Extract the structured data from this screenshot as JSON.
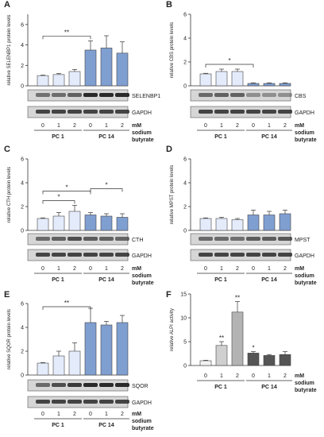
{
  "chart_data": [
    {
      "panel": "A",
      "type": "bar",
      "title": "",
      "ylabel": "relative SELENBP1 protein levels",
      "ylim": [
        0,
        7
      ],
      "yticks": [
        0,
        2,
        4,
        6
      ],
      "categories": [
        "0",
        "1",
        "2",
        "0",
        "1",
        "2"
      ],
      "groups": [
        "PC 1",
        "PC 14"
      ],
      "values": [
        1.0,
        1.1,
        1.4,
        3.5,
        3.7,
        3.2
      ],
      "errors": [
        0.05,
        0.1,
        0.2,
        0.9,
        1.2,
        1.1
      ],
      "significance": [
        {
          "label": "**",
          "from": 0,
          "to": 3
        }
      ],
      "blots": [
        "SELENBP1",
        "GAPDH"
      ],
      "unit_label": [
        "mM",
        "sodium",
        "butyrate"
      ]
    },
    {
      "panel": "B",
      "type": "bar",
      "title": "",
      "ylabel": "relative CBS protein levels",
      "ylim": [
        0,
        6
      ],
      "yticks": [
        0,
        2,
        4,
        6
      ],
      "categories": [
        "0",
        "1",
        "2",
        "0",
        "1",
        "2"
      ],
      "groups": [
        "PC 1",
        "PC 14"
      ],
      "values": [
        1.0,
        1.2,
        1.2,
        0.2,
        0.2,
        0.2
      ],
      "errors": [
        0.05,
        0.2,
        0.2,
        0.05,
        0.05,
        0.05
      ],
      "significance": [
        {
          "label": "*",
          "from": 0,
          "to": 3
        }
      ],
      "blots": [
        "CBS",
        "GAPDH"
      ],
      "unit_label": [
        "mM",
        "sodium",
        "butyrate"
      ]
    },
    {
      "panel": "C",
      "type": "bar",
      "title": "",
      "ylabel": "relative CTH protein levels",
      "ylim": [
        0,
        6
      ],
      "yticks": [
        0,
        2,
        4,
        6
      ],
      "categories": [
        "0",
        "1",
        "2",
        "0",
        "1",
        "2"
      ],
      "groups": [
        "PC 1",
        "PC 14"
      ],
      "values": [
        1.0,
        1.2,
        1.6,
        1.3,
        1.2,
        1.1
      ],
      "errors": [
        0.05,
        0.3,
        0.5,
        0.2,
        0.2,
        0.3
      ],
      "significance": [
        {
          "label": "*",
          "from": 0,
          "to": 2
        },
        {
          "label": "*",
          "from": 0,
          "to": 3
        },
        {
          "label": "*",
          "from": 3,
          "to": 5
        }
      ],
      "blots": [
        "CTH",
        "GAPDH"
      ],
      "unit_label": [
        "mM",
        "sodium",
        "butyrate"
      ]
    },
    {
      "panel": "D",
      "type": "bar",
      "title": "",
      "ylabel": "relative MPST protein levels",
      "ylim": [
        0,
        6
      ],
      "yticks": [
        0,
        2,
        4,
        6
      ],
      "categories": [
        "0",
        "1",
        "2",
        "0",
        "1",
        "2"
      ],
      "groups": [
        "PC 1",
        "PC 14"
      ],
      "values": [
        1.0,
        1.0,
        0.9,
        1.3,
        1.3,
        1.4
      ],
      "errors": [
        0.05,
        0.1,
        0.1,
        0.4,
        0.3,
        0.3
      ],
      "significance": [],
      "blots": [
        "MPST",
        "GAPDH"
      ],
      "unit_label": [
        "mM",
        "sodium",
        "butyrate"
      ]
    },
    {
      "panel": "E",
      "type": "bar",
      "title": "",
      "ylabel": "relative SQOR protein levels",
      "ylim": [
        0,
        6
      ],
      "yticks": [
        0,
        2,
        4,
        6
      ],
      "categories": [
        "0",
        "1",
        "2",
        "0",
        "1",
        "2"
      ],
      "groups": [
        "PC 1",
        "PC 14"
      ],
      "values": [
        1.0,
        1.6,
        2.0,
        4.4,
        4.2,
        4.4
      ],
      "errors": [
        0.05,
        0.4,
        0.7,
        1.2,
        0.3,
        0.6
      ],
      "significance": [
        {
          "label": "**",
          "from": 0,
          "to": 3
        }
      ],
      "blots": [
        "SQOR",
        "GAPDH"
      ],
      "unit_label": [
        "mM",
        "sodium",
        "butyrate"
      ]
    },
    {
      "panel": "F",
      "type": "bar",
      "title": "",
      "ylabel": "relative ALPI activity",
      "ylim": [
        0,
        15
      ],
      "yticks": [
        0,
        5,
        10,
        15
      ],
      "categories": [
        "0",
        "1",
        "2",
        "0",
        "1",
        "2"
      ],
      "groups": [
        "PC 1",
        "PC 14"
      ],
      "values": [
        1.0,
        4.2,
        11.2,
        2.6,
        2.1,
        2.3
      ],
      "errors": [
        0.1,
        0.8,
        2.2,
        0.3,
        0.2,
        0.6
      ],
      "annotations": [
        "",
        "**",
        "**",
        "*",
        "",
        ""
      ],
      "blots": [],
      "unit_label": [
        "mM",
        "sodium",
        "butyrate"
      ]
    }
  ],
  "colors": {
    "pc1_bar": "#e4ecfb",
    "pc14_bar": "#7f9fd1",
    "f_pc1_light": "#f2f2f2",
    "f_pc1_mid": "#cfcfcf",
    "f_pc1_dark": "#b3b3b3",
    "f_pc14": "#555555",
    "blot_bg": "#d6d6d6",
    "blot_band": "#2a2a2a"
  }
}
